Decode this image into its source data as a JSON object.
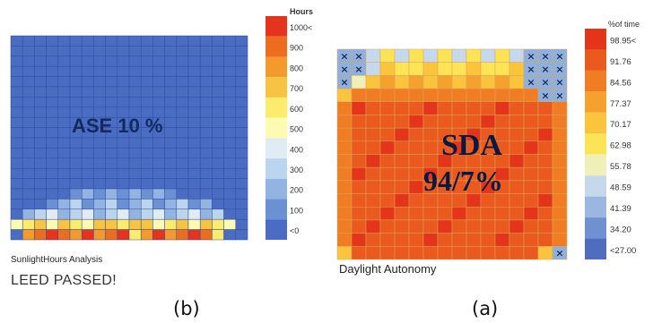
{
  "chart_data": [
    {
      "type": "heatmap",
      "panel": "(b)",
      "annotation": "ASE 10 %",
      "footer_title": "SunlightHours Analysis",
      "footer_status": "LEED PASSED!",
      "legend_title": "Hours",
      "legend_labels": [
        "1000<",
        "900",
        "800",
        "700",
        "600",
        "500",
        "400",
        "300",
        "200",
        "100",
        "<0"
      ],
      "legend_colors": [
        "#e5331e",
        "#ec6d20",
        "#f39a2d",
        "#f7c343",
        "#fbec6d",
        "#fdfab2",
        "#e1ebf4",
        "#bcd5ef",
        "#93b4e3",
        "#6b90d4",
        "#4a6cc2"
      ],
      "grid": {
        "rows": 20,
        "cols": 20
      },
      "row_profiles": [
        {
          "row": 15,
          "min_col": 5,
          "max_col": 13,
          "level": 7
        },
        {
          "row": 16,
          "min_col": 3,
          "max_col": 16,
          "level": 7
        },
        {
          "row": 17,
          "min_col": 1,
          "max_col": 17,
          "level": 6
        },
        {
          "row": 18,
          "min_col": 0,
          "max_col": 18,
          "level": 5
        },
        {
          "row": 19,
          "min_col": 1,
          "max_col": 17,
          "level": 0
        }
      ]
    },
    {
      "type": "heatmap",
      "panel": "(a)",
      "annotation_line1": "SDA",
      "annotation_line2": "94/7%",
      "footer_title": "Daylight Autonomy",
      "legend_title": "%of time",
      "legend_labels": [
        "98.95<",
        "91.76",
        "84.56",
        "77.37",
        "70.17",
        "62.98",
        "55.78",
        "48.59",
        "41.39",
        "34.20",
        "<27.00"
      ],
      "legend_colors": [
        "#e4351b",
        "#ea5a1e",
        "#f07d24",
        "#f5a12e",
        "#fac43d",
        "#fde356",
        "#eef0b8",
        "#c5d8ec",
        "#9bb6e1",
        "#7091d1",
        "#4e6dbf"
      ],
      "grid": {
        "rows": 16,
        "cols": 16
      },
      "excluded_cells": [
        [
          0,
          0
        ],
        [
          0,
          1
        ],
        [
          1,
          0
        ],
        [
          1,
          1
        ],
        [
          2,
          0
        ],
        [
          0,
          13
        ],
        [
          0,
          14
        ],
        [
          0,
          15
        ],
        [
          1,
          13
        ],
        [
          1,
          14
        ],
        [
          1,
          15
        ],
        [
          2,
          13
        ],
        [
          2,
          14
        ],
        [
          2,
          15
        ],
        [
          3,
          14
        ],
        [
          3,
          15
        ],
        [
          15,
          15
        ]
      ]
    }
  ],
  "captions": {
    "b": "(b)",
    "a": "(a)"
  }
}
